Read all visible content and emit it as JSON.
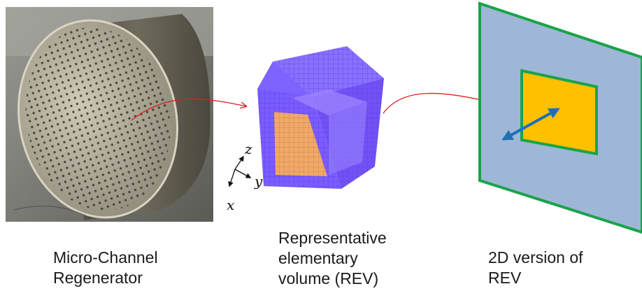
{
  "captions": {
    "regenerator": [
      "Micro-Channel",
      "Regenerator"
    ],
    "rev": [
      "Representative",
      "elementary",
      "volume (REV)"
    ],
    "rev2d": [
      "2D version of",
      "REV"
    ]
  },
  "axes": {
    "z": "z",
    "y": "y",
    "x": "x"
  },
  "colors": {
    "cube_outer": "#7b5cff",
    "cube_inner": "#f0a968",
    "panel_fill": "#9fb7d6",
    "panel_border": "#1aa34a",
    "square_fill": "#ffc000",
    "double_arrow": "#1f6fb5",
    "link_arrow": "#e0201c"
  }
}
